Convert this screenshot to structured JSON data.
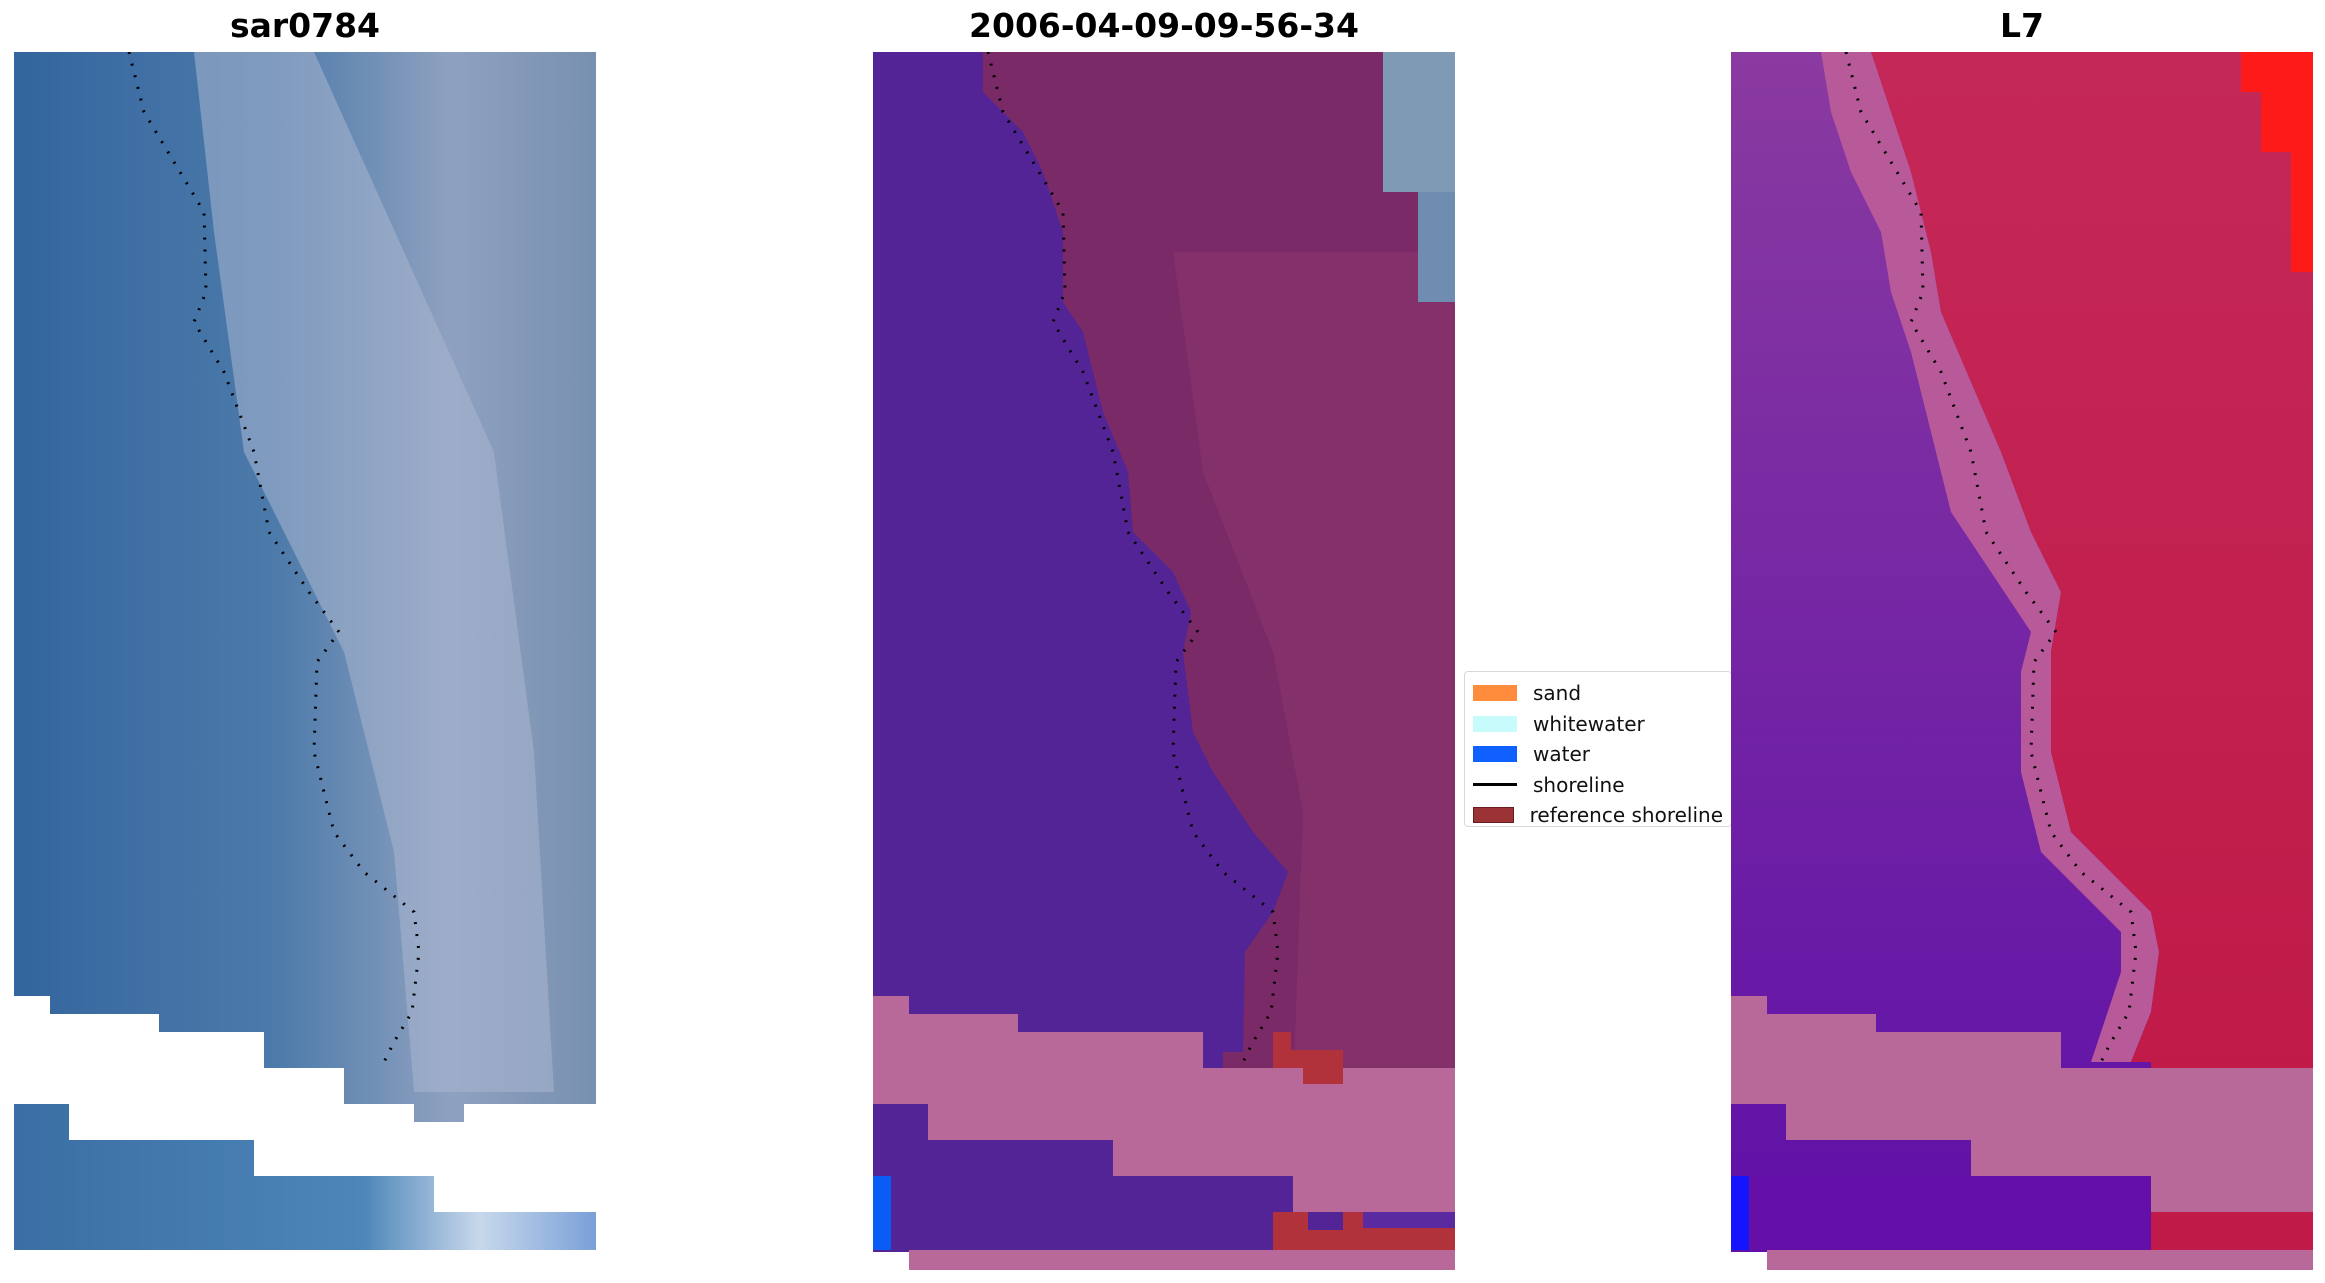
{
  "panels": [
    {
      "title": "sar0784"
    },
    {
      "title": "2006-04-09-09-56-34"
    },
    {
      "title": "L7"
    }
  ],
  "legend": {
    "items": [
      {
        "label": "sand",
        "color": "#ff8c3c"
      },
      {
        "label": "whitewater",
        "color": "#c8fcfc"
      },
      {
        "label": "water",
        "color": "#1060ff"
      },
      {
        "label": "shoreline",
        "color": "#000000"
      },
      {
        "label": "reference shoreline",
        "color": "#9b3236"
      }
    ]
  },
  "colors": {
    "rgb_water": "#3d6a9e",
    "rgb_land": "#8a9ab8",
    "class_water": "#532495",
    "class_land": "#7a2a66",
    "ndwi_water": "#7a2a9e",
    "ndwi_land": "#c81e4a",
    "nodata": "#b9689a"
  }
}
